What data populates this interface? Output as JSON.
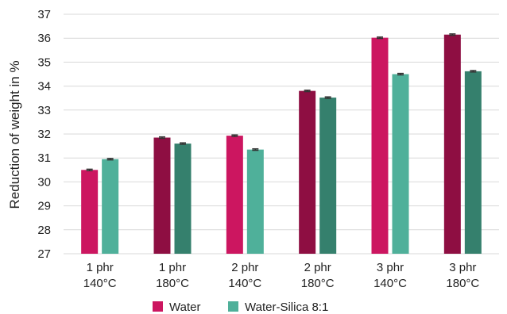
{
  "chart_data": {
    "type": "bar",
    "title": "",
    "xlabel": "",
    "ylabel": "Reduction of weight in %",
    "ylim": [
      27,
      37
    ],
    "yticks": [
      27,
      28,
      29,
      30,
      31,
      32,
      33,
      34,
      35,
      36,
      37
    ],
    "grid": true,
    "legend_position": "bottom",
    "categories": [
      [
        "1 phr",
        "140°C"
      ],
      [
        "1 phr",
        "180°C"
      ],
      [
        "2 phr",
        "140°C"
      ],
      [
        "2 phr",
        "180°C"
      ],
      [
        "3 phr",
        "140°C"
      ],
      [
        "3 phr",
        "180°C"
      ]
    ],
    "series": [
      {
        "name": "Water",
        "values": [
          30.5,
          31.85,
          31.93,
          33.8,
          36.02,
          36.15
        ],
        "error": [
          0.03,
          0.03,
          0.03,
          0.03,
          0.03,
          0.03
        ],
        "colors": [
          "#cc1660",
          "#8e0e42",
          "#cc1660",
          "#8e0e42",
          "#cc1660",
          "#8e0e42"
        ],
        "legend_color": "#cc1660"
      },
      {
        "name": "Water-Silica 8:1",
        "values": [
          30.95,
          31.6,
          31.35,
          33.52,
          34.5,
          34.62
        ],
        "error": [
          0.03,
          0.03,
          0.03,
          0.03,
          0.03,
          0.03
        ],
        "colors": [
          "#4fb09a",
          "#35806d",
          "#4fb09a",
          "#35806d",
          "#4fb09a",
          "#35806d"
        ],
        "legend_color": "#4fb09a"
      }
    ]
  }
}
